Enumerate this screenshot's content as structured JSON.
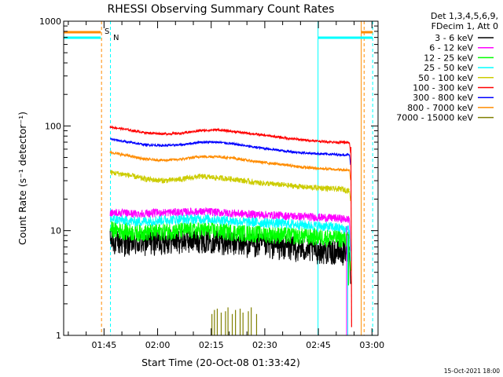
{
  "chart_data": {
    "type": "line",
    "title": "RHESSI Observing Summary Count Rates",
    "xlabel": "Start Time (20-Oct-08 01:33:42)",
    "ylabel": "Count Rate (s⁻¹ detector⁻¹)",
    "yscale": "log",
    "ylim": [
      1,
      1000
    ],
    "y_ticks": [
      1,
      10,
      100,
      1000
    ],
    "y_tick_labels": [
      "1",
      "10",
      "100",
      "1000"
    ],
    "xlim_minutes": [
      0,
      88
    ],
    "x_ticks_minutes": [
      11.3,
      26.3,
      41.3,
      56.3,
      71.3,
      86.3
    ],
    "x_tick_labels": [
      "01:45",
      "02:00",
      "02:15",
      "02:30",
      "02:45",
      "03:00"
    ],
    "grid": false,
    "legend_position": "right",
    "legend_header": [
      "Det 1,3,4,5,6,9,",
      "FDecim 1, Att 0"
    ],
    "footer": "15-Oct-2021 18:00",
    "series": [
      {
        "name": "3 - 6 keV",
        "color": "#000000",
        "x": [
          13,
          20,
          30,
          40,
          50,
          60,
          70,
          76,
          78,
          80
        ],
        "y": [
          8,
          7.6,
          8.2,
          8.4,
          7.6,
          7.2,
          6.6,
          6.4,
          6.3,
          6.2
        ]
      },
      {
        "name": "6 - 12 keV",
        "color": "#ff00ff",
        "x": [
          13,
          20,
          30,
          40,
          50,
          60,
          70,
          76,
          78,
          80
        ],
        "y": [
          15,
          14.5,
          15,
          15.2,
          14.5,
          14,
          13.5,
          13.2,
          13,
          12.8
        ]
      },
      {
        "name": "12 - 25 keV",
        "color": "#00ff00",
        "x": [
          13,
          20,
          30,
          40,
          50,
          60,
          70,
          76,
          78,
          80
        ],
        "y": [
          10.5,
          9.6,
          10,
          10.2,
          9.6,
          9.2,
          8.8,
          8.6,
          8.4,
          8.3
        ]
      },
      {
        "name": "25 - 50 keV",
        "color": "#00ffff",
        "x": [
          13,
          20,
          30,
          40,
          50,
          60,
          70,
          76,
          78,
          80
        ],
        "y": [
          13,
          12.2,
          12.8,
          13,
          12.2,
          11.8,
          11.2,
          10.8,
          10.5,
          10.2
        ]
      },
      {
        "name": "50 - 100 keV",
        "color": "#cccc00",
        "x": [
          13,
          18,
          23,
          28,
          33,
          38,
          43,
          48,
          53,
          58,
          63,
          68,
          73,
          76,
          78,
          80
        ],
        "y": [
          36,
          34,
          31,
          30,
          31,
          33,
          32,
          31,
          29,
          28,
          27,
          26,
          25.5,
          25,
          25,
          24
        ]
      },
      {
        "name": "100 - 300 keV",
        "color": "#ff0000",
        "x": [
          13,
          18,
          23,
          28,
          33,
          38,
          43,
          48,
          53,
          58,
          63,
          68,
          73,
          76,
          78,
          80
        ],
        "y": [
          98,
          92,
          86,
          84,
          85,
          90,
          92,
          88,
          84,
          80,
          76,
          73,
          71,
          70,
          70,
          69
        ]
      },
      {
        "name": "300 - 800 keV",
        "color": "#0000ff",
        "x": [
          13,
          18,
          23,
          28,
          33,
          38,
          43,
          48,
          53,
          58,
          63,
          68,
          73,
          76,
          78,
          80
        ],
        "y": [
          75,
          70,
          66,
          65,
          66,
          70,
          70,
          67,
          63,
          60,
          57,
          55,
          54,
          53.5,
          53,
          53
        ]
      },
      {
        "name": "800 - 7000 keV",
        "color": "#ff8c00",
        "x": [
          13,
          18,
          23,
          28,
          33,
          38,
          43,
          48,
          53,
          58,
          63,
          68,
          73,
          76,
          78,
          80
        ],
        "y": [
          56,
          52,
          48,
          47,
          48,
          51,
          51,
          49,
          46,
          44,
          42,
          40,
          39,
          38.5,
          38,
          38
        ]
      },
      {
        "name": "7000 - 15000 keV",
        "color": "#808000",
        "x": [],
        "y": []
      }
    ],
    "annotations": [
      {
        "text": "S",
        "color": "#ff8c00"
      },
      {
        "text": "N",
        "color": "#00ffff"
      }
    ]
  }
}
